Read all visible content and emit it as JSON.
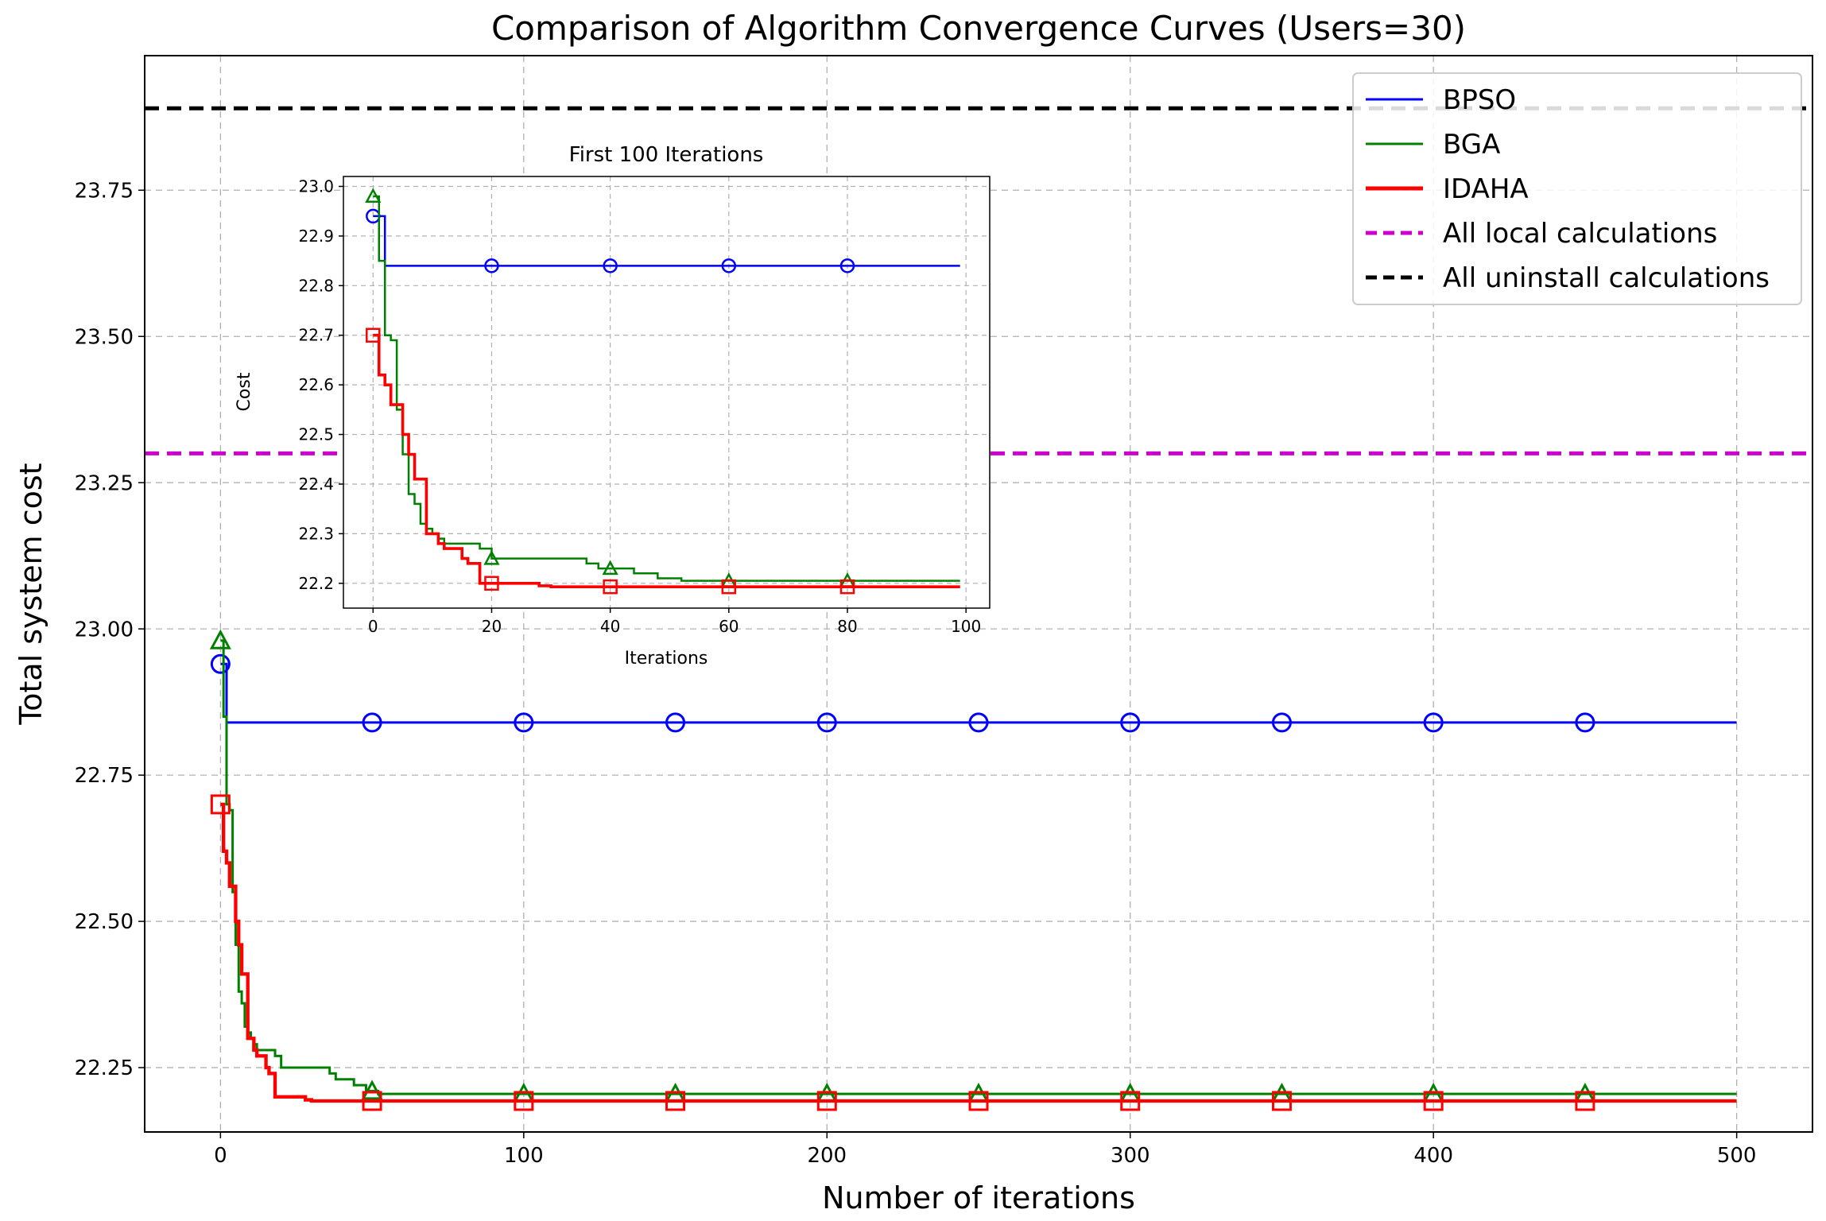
{
  "chart_data": [
    {
      "type": "line",
      "title": "Comparison of Algorithm Convergence Curves (Users=30)",
      "xlabel": "Number of iterations",
      "ylabel": "Total system cost",
      "xlim": [
        -25,
        525
      ],
      "ylim": [
        22.14,
        23.98
      ],
      "xticks": [
        0,
        100,
        200,
        300,
        400,
        500
      ],
      "xtick_labels": [
        "0",
        "100",
        "200",
        "300",
        "400",
        "500"
      ],
      "yticks": [
        22.25,
        22.5,
        22.75,
        23.0,
        23.25,
        23.5,
        23.75
      ],
      "ytick_labels": [
        "22.25",
        "22.50",
        "22.75",
        "23.00",
        "23.25",
        "23.50",
        "23.75"
      ],
      "grid": true,
      "legend_position": "top-right",
      "series": [
        {
          "name": "BPSO",
          "color": "#0000ff",
          "marker": "circle",
          "style": "solid",
          "x": [
            0,
            1,
            2,
            500
          ],
          "y": [
            22.94,
            22.94,
            22.84,
            22.84
          ],
          "marker_x": [
            0,
            50,
            100,
            150,
            200,
            250,
            300,
            350,
            400,
            450
          ]
        },
        {
          "name": "BGA",
          "color": "#008000",
          "marker": "triangle",
          "style": "solid",
          "x": [
            0,
            1,
            2,
            3,
            4,
            5,
            6,
            7,
            8,
            9,
            10,
            11,
            12,
            14,
            16,
            18,
            20,
            22,
            36,
            38,
            42,
            44,
            48,
            52,
            500
          ],
          "y": [
            22.98,
            22.85,
            22.7,
            22.69,
            22.55,
            22.46,
            22.38,
            22.36,
            22.32,
            22.31,
            22.3,
            22.29,
            22.28,
            22.28,
            22.28,
            22.27,
            22.25,
            22.25,
            22.24,
            22.23,
            22.23,
            22.22,
            22.21,
            22.205,
            22.205
          ],
          "marker_x": [
            0,
            50,
            100,
            150,
            200,
            250,
            300,
            350,
            400,
            450
          ]
        },
        {
          "name": "IDAHA",
          "color": "#ff0000",
          "marker": "square",
          "style": "solid",
          "x": [
            0,
            1,
            2,
            3,
            4,
            5,
            6,
            7,
            8,
            9,
            10,
            11,
            12,
            13,
            14,
            15,
            16,
            17,
            18,
            19,
            20,
            25,
            28,
            30,
            500
          ],
          "y": [
            22.7,
            22.62,
            22.6,
            22.56,
            22.56,
            22.5,
            22.46,
            22.41,
            22.41,
            22.3,
            22.3,
            22.28,
            22.27,
            22.27,
            22.27,
            22.25,
            22.24,
            22.24,
            22.2,
            22.2,
            22.2,
            22.2,
            22.195,
            22.193,
            22.193
          ],
          "marker_x": [
            0,
            50,
            100,
            150,
            200,
            250,
            300,
            350,
            400,
            450
          ]
        },
        {
          "name": "All local calculations",
          "color": "#cc00cc",
          "style": "dashed",
          "hline": 23.3
        },
        {
          "name": "All uninstall calculations",
          "color": "#000000",
          "style": "dashed",
          "hline": 23.89
        }
      ]
    },
    {
      "type": "line",
      "title": "First 100 Iterations",
      "xlabel": "Iterations",
      "ylabel": "Cost",
      "xlim": [
        -5,
        104
      ],
      "ylim": [
        22.15,
        23.02
      ],
      "xticks": [
        0,
        20,
        40,
        60,
        80,
        100
      ],
      "xtick_labels": [
        "0",
        "20",
        "40",
        "60",
        "80",
        "100"
      ],
      "yticks": [
        22.2,
        22.3,
        22.4,
        22.5,
        22.6,
        22.7,
        22.8,
        22.9,
        23.0
      ],
      "ytick_labels": [
        "22.2",
        "22.3",
        "22.4",
        "22.5",
        "22.6",
        "22.7",
        "22.8",
        "22.9",
        "23.0"
      ],
      "grid": true,
      "series": [
        {
          "name": "BPSO",
          "color": "#0000ff",
          "marker": "circle",
          "x": [
            0,
            1,
            2,
            99
          ],
          "y": [
            22.94,
            22.94,
            22.84,
            22.84
          ],
          "marker_x": [
            0,
            20,
            40,
            60,
            80
          ]
        },
        {
          "name": "BGA",
          "color": "#008000",
          "marker": "triangle",
          "x": [
            0,
            1,
            2,
            3,
            4,
            5,
            6,
            7,
            8,
            9,
            10,
            11,
            12,
            14,
            16,
            18,
            20,
            22,
            36,
            38,
            42,
            44,
            48,
            52,
            99
          ],
          "y": [
            22.98,
            22.85,
            22.7,
            22.69,
            22.55,
            22.46,
            22.38,
            22.36,
            22.32,
            22.31,
            22.3,
            22.29,
            22.28,
            22.28,
            22.28,
            22.27,
            22.25,
            22.25,
            22.24,
            22.23,
            22.23,
            22.22,
            22.21,
            22.205,
            22.205
          ],
          "marker_x": [
            0,
            20,
            40,
            60,
            80
          ]
        },
        {
          "name": "IDAHA",
          "color": "#ff0000",
          "marker": "square",
          "x": [
            0,
            1,
            2,
            3,
            4,
            5,
            6,
            7,
            8,
            9,
            10,
            11,
            12,
            13,
            14,
            15,
            16,
            17,
            18,
            19,
            20,
            25,
            28,
            30,
            99
          ],
          "y": [
            22.7,
            22.62,
            22.6,
            22.56,
            22.56,
            22.5,
            22.46,
            22.41,
            22.41,
            22.3,
            22.3,
            22.28,
            22.27,
            22.27,
            22.27,
            22.25,
            22.24,
            22.24,
            22.2,
            22.2,
            22.2,
            22.2,
            22.195,
            22.193,
            22.193
          ],
          "marker_x": [
            0,
            20,
            40,
            60,
            80
          ]
        }
      ]
    }
  ]
}
